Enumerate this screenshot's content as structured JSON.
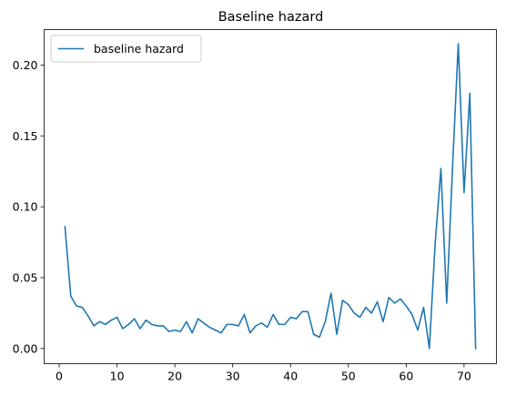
{
  "chart_data": {
    "type": "line",
    "title": "Baseline hazard",
    "xlabel": "",
    "ylabel": "",
    "xlim": [
      -2.6,
      75.6
    ],
    "ylim": [
      -0.0107,
      0.225
    ],
    "xticks": [
      0,
      10,
      20,
      30,
      40,
      50,
      60,
      70
    ],
    "yticks": [
      0.0,
      0.05,
      0.1,
      0.15,
      0.2
    ],
    "ytick_labels": [
      "0.00",
      "0.05",
      "0.10",
      "0.15",
      "0.20"
    ],
    "grid": false,
    "legend_position": "top-left",
    "series": [
      {
        "name": "baseline hazard",
        "color": "#1f77b4",
        "x": [
          1,
          2,
          3,
          4,
          5,
          6,
          7,
          8,
          9,
          10,
          11,
          12,
          13,
          14,
          15,
          16,
          17,
          18,
          19,
          20,
          21,
          22,
          23,
          24,
          25,
          26,
          27,
          28,
          29,
          30,
          31,
          32,
          33,
          34,
          35,
          36,
          37,
          38,
          39,
          40,
          41,
          42,
          43,
          44,
          45,
          46,
          47,
          48,
          49,
          50,
          51,
          52,
          53,
          54,
          55,
          56,
          57,
          58,
          59,
          60,
          61,
          62,
          63,
          64,
          65,
          66,
          67,
          68,
          69,
          70,
          71,
          72
        ],
        "y": [
          0.086,
          0.037,
          0.03,
          0.029,
          0.023,
          0.016,
          0.019,
          0.017,
          0.02,
          0.022,
          0.014,
          0.017,
          0.021,
          0.014,
          0.02,
          0.017,
          0.016,
          0.016,
          0.012,
          0.013,
          0.012,
          0.019,
          0.011,
          0.021,
          0.018,
          0.015,
          0.013,
          0.011,
          0.017,
          0.017,
          0.016,
          0.024,
          0.011,
          0.016,
          0.018,
          0.015,
          0.024,
          0.017,
          0.017,
          0.022,
          0.021,
          0.026,
          0.026,
          0.01,
          0.008,
          0.019,
          0.039,
          0.01,
          0.034,
          0.031,
          0.025,
          0.022,
          0.029,
          0.025,
          0.033,
          0.019,
          0.036,
          0.032,
          0.035,
          0.03,
          0.024,
          0.013,
          0.029,
          0.0,
          0.074,
          0.127,
          0.032,
          0.127,
          0.215,
          0.11,
          0.18,
          0.0
        ]
      }
    ]
  }
}
